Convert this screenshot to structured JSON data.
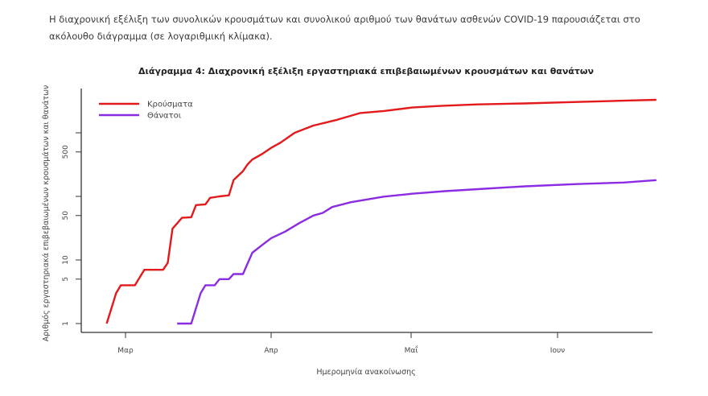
{
  "document": {
    "intro_text": "Η διαχρονική εξέλιξη των συνολικών κρουσμάτων και συνολικού αριθμού των θανάτων ασθενών COVID-19 παρουσιάζεται στο ακόλουθο διάγραμμα (σε λογαριθμική κλίμακα)."
  },
  "chart_data": {
    "type": "line",
    "title": "Διάγραμμα 4: Διαχρονική εξέλιξη εργαστηριακά επιβεβαιωμένων κρουσμάτων και θανάτων",
    "xlabel": "Ημερομηνία ανακοίνωσης",
    "ylabel": "Αριθμός εργαστηριακά επιβεβαιωμένων κρουσμάτων και θανάτων",
    "yscale": "log",
    "ylim": [
      1,
      4000
    ],
    "x_ticks": [
      "Μαρ",
      "Απρ",
      "Μαΐ",
      "Ιουν"
    ],
    "y_ticks": [
      1,
      5,
      10,
      50,
      100,
      500,
      1000
    ],
    "y_tick_labels": [
      "1",
      "5",
      "10",
      "50",
      "",
      "500",
      ""
    ],
    "legend_position": "top-left",
    "grid": false,
    "series": [
      {
        "name": "Κρούσματα",
        "color": "#e3191c",
        "points": [
          [
            "2020-02-26",
            1
          ],
          [
            "2020-02-28",
            3
          ],
          [
            "2020-02-29",
            4
          ],
          [
            "2020-03-03",
            4
          ],
          [
            "2020-03-05",
            7
          ],
          [
            "2020-03-09",
            7
          ],
          [
            "2020-03-10",
            9
          ],
          [
            "2020-03-11",
            31
          ],
          [
            "2020-03-13",
            46
          ],
          [
            "2020-03-15",
            47
          ],
          [
            "2020-03-16",
            73
          ],
          [
            "2020-03-18",
            75
          ],
          [
            "2020-03-19",
            95
          ],
          [
            "2020-03-21",
            100
          ],
          [
            "2020-03-23",
            104
          ],
          [
            "2020-03-24",
            180
          ],
          [
            "2020-03-26",
            250
          ],
          [
            "2020-03-27",
            320
          ],
          [
            "2020-03-28",
            380
          ],
          [
            "2020-03-30",
            460
          ],
          [
            "2020-04-01",
            580
          ],
          [
            "2020-04-03",
            700
          ],
          [
            "2020-04-06",
            1000
          ],
          [
            "2020-04-10",
            1300
          ],
          [
            "2020-04-15",
            1600
          ],
          [
            "2020-04-20",
            2050
          ],
          [
            "2020-04-25",
            2200
          ],
          [
            "2020-05-01",
            2500
          ],
          [
            "2020-05-07",
            2650
          ],
          [
            "2020-05-15",
            2800
          ],
          [
            "2020-05-25",
            2900
          ],
          [
            "2020-06-05",
            3050
          ],
          [
            "2020-06-15",
            3200
          ],
          [
            "2020-06-22",
            3300
          ]
        ]
      },
      {
        "name": "Θάνατοι",
        "color": "#8b2be2",
        "points": [
          [
            "2020-03-12",
            1
          ],
          [
            "2020-03-15",
            1
          ],
          [
            "2020-03-17",
            3
          ],
          [
            "2020-03-18",
            4
          ],
          [
            "2020-03-20",
            4
          ],
          [
            "2020-03-21",
            5
          ],
          [
            "2020-03-23",
            5
          ],
          [
            "2020-03-24",
            6
          ],
          [
            "2020-03-26",
            6
          ],
          [
            "2020-03-28",
            13
          ],
          [
            "2020-03-30",
            17
          ],
          [
            "2020-04-01",
            22
          ],
          [
            "2020-04-04",
            28
          ],
          [
            "2020-04-07",
            38
          ],
          [
            "2020-04-10",
            50
          ],
          [
            "2020-04-12",
            55
          ],
          [
            "2020-04-14",
            68
          ],
          [
            "2020-04-18",
            81
          ],
          [
            "2020-04-25",
            99
          ],
          [
            "2020-05-01",
            110
          ],
          [
            "2020-05-08",
            121
          ],
          [
            "2020-05-15",
            130
          ],
          [
            "2020-05-25",
            144
          ],
          [
            "2020-06-05",
            156
          ],
          [
            "2020-06-15",
            165
          ],
          [
            "2020-06-22",
            180
          ]
        ]
      }
    ]
  }
}
